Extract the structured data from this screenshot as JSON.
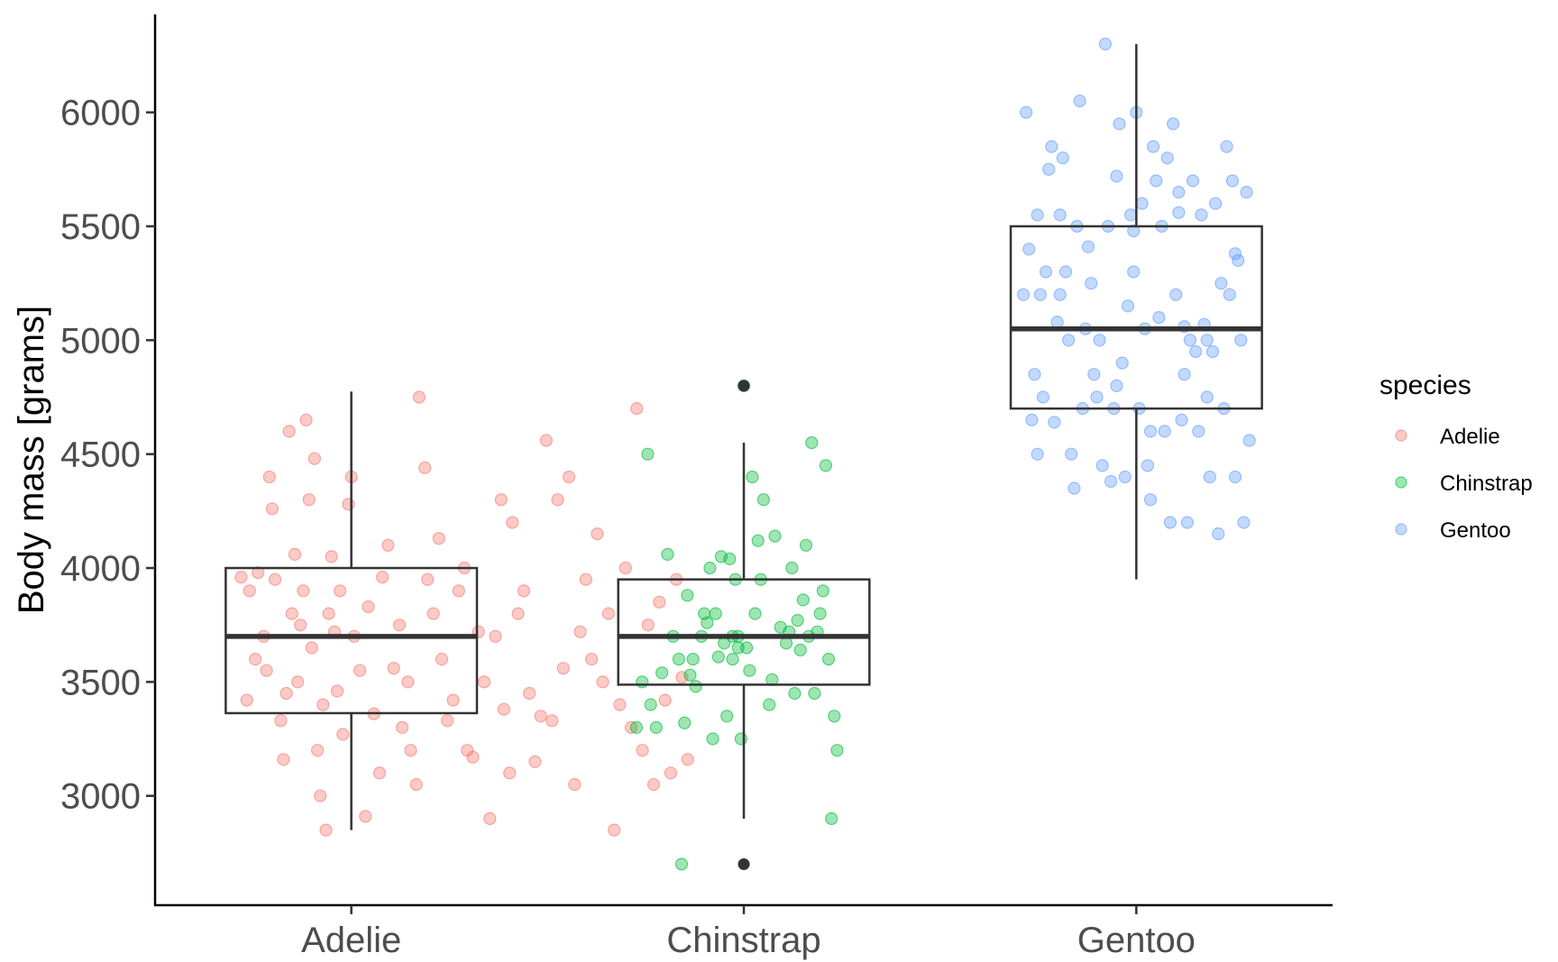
{
  "chart_data": {
    "type": "box",
    "ylabel": "Body mass [grams]",
    "xlabel": "",
    "categories": [
      "Adelie",
      "Chinstrap",
      "Gentoo"
    ],
    "yticks": [
      3000,
      3500,
      4000,
      4500,
      5000,
      5500,
      6000
    ],
    "ylim": [
      2520,
      6430
    ],
    "grid": false,
    "legend": {
      "title": "species",
      "position": "right",
      "entries": [
        {
          "name": "Adelie",
          "color": "#F8766D"
        },
        {
          "name": "Chinstrap",
          "color": "#00BA38"
        },
        {
          "name": "Gentoo",
          "color": "#619CFF"
        }
      ]
    },
    "boxes": [
      {
        "category": "Adelie",
        "whisker_low": 2850,
        "q1": 3363,
        "median": 3700,
        "q3": 4000,
        "whisker_high": 4775,
        "outliers": []
      },
      {
        "category": "Chinstrap",
        "whisker_low": 2900,
        "q1": 3488,
        "median": 3700,
        "q3": 3950,
        "whisker_high": 4550,
        "outliers": [
          2700,
          4800
        ]
      },
      {
        "category": "Gentoo",
        "whisker_low": 3950,
        "q1": 4700,
        "median": 5050,
        "q3": 5500,
        "whisker_high": 6300,
        "outliers": []
      }
    ],
    "series": [
      {
        "name": "Adelie",
        "color": "#F8766D",
        "points": [
          [
            -0.3,
            3960
          ],
          [
            -0.27,
            3900
          ],
          [
            -0.25,
            3600
          ],
          [
            -0.28,
            3420
          ],
          [
            -0.22,
            3700
          ],
          [
            -0.24,
            3980
          ],
          [
            -0.2,
            4400
          ],
          [
            -0.19,
            4260
          ],
          [
            -0.18,
            3950
          ],
          [
            -0.21,
            3550
          ],
          [
            -0.15,
            3160
          ],
          [
            -0.12,
            3800
          ],
          [
            -0.14,
            3450
          ],
          [
            -0.16,
            3330
          ],
          [
            -0.1,
            3500
          ],
          [
            -0.09,
            3750
          ],
          [
            -0.08,
            3900
          ],
          [
            -0.11,
            4060
          ],
          [
            -0.06,
            4300
          ],
          [
            -0.04,
            4480
          ],
          [
            -0.07,
            4650
          ],
          [
            -0.05,
            3650
          ],
          [
            -0.03,
            3200
          ],
          [
            -0.02,
            3000
          ],
          [
            0.0,
            2850
          ],
          [
            -0.13,
            4600
          ],
          [
            -0.01,
            3400
          ],
          [
            0.01,
            3800
          ],
          [
            0.02,
            4050
          ],
          [
            0.03,
            3720
          ],
          [
            0.04,
            3460
          ],
          [
            0.05,
            3900
          ],
          [
            0.06,
            3270
          ],
          [
            0.08,
            4280
          ],
          [
            0.09,
            4400
          ],
          [
            0.1,
            3700
          ],
          [
            0.12,
            3550
          ],
          [
            0.14,
            2910
          ],
          [
            0.15,
            3830
          ],
          [
            0.17,
            3360
          ],
          [
            0.19,
            3100
          ],
          [
            0.2,
            3960
          ],
          [
            0.22,
            4100
          ],
          [
            0.24,
            3560
          ],
          [
            0.26,
            3750
          ],
          [
            0.27,
            3300
          ],
          [
            0.29,
            3500
          ],
          [
            0.3,
            3200
          ],
          [
            0.32,
            3050
          ],
          [
            0.33,
            4750
          ],
          [
            0.35,
            4440
          ],
          [
            0.36,
            3950
          ],
          [
            0.38,
            3800
          ],
          [
            0.4,
            4130
          ],
          [
            0.41,
            3600
          ],
          [
            0.43,
            3330
          ],
          [
            0.45,
            3420
          ],
          [
            0.47,
            3900
          ],
          [
            0.49,
            4000
          ],
          [
            0.5,
            3200
          ],
          [
            0.52,
            3170
          ],
          [
            0.54,
            3720
          ],
          [
            0.56,
            3500
          ],
          [
            0.58,
            2900
          ],
          [
            0.6,
            3700
          ],
          [
            0.62,
            4300
          ],
          [
            0.63,
            3380
          ],
          [
            0.65,
            3100
          ],
          [
            0.66,
            4200
          ],
          [
            0.68,
            3800
          ],
          [
            0.7,
            3900
          ],
          [
            0.72,
            3450
          ],
          [
            0.74,
            3150
          ],
          [
            0.76,
            3350
          ],
          [
            0.78,
            4560
          ],
          [
            0.8,
            3330
          ],
          [
            0.82,
            4300
          ],
          [
            0.84,
            3560
          ],
          [
            0.86,
            4400
          ],
          [
            0.88,
            3050
          ],
          [
            0.9,
            3720
          ],
          [
            0.92,
            3950
          ],
          [
            0.94,
            3600
          ],
          [
            0.96,
            4150
          ],
          [
            0.98,
            3500
          ],
          [
            1.0,
            3800
          ],
          [
            1.02,
            2850
          ],
          [
            1.04,
            3400
          ],
          [
            1.06,
            4000
          ],
          [
            1.08,
            3300
          ],
          [
            1.1,
            4700
          ],
          [
            1.12,
            3200
          ],
          [
            1.14,
            3750
          ],
          [
            1.16,
            3050
          ],
          [
            1.18,
            3850
          ],
          [
            1.2,
            3420
          ],
          [
            1.22,
            3100
          ],
          [
            1.24,
            3950
          ],
          [
            1.26,
            3520
          ],
          [
            1.28,
            3160
          ]
        ]
      },
      {
        "name": "Chinstrap",
        "color": "#00BA38",
        "points": [
          [
            -0.29,
            3300
          ],
          [
            -0.27,
            3500
          ],
          [
            -0.25,
            4500
          ],
          [
            -0.24,
            3400
          ],
          [
            -0.22,
            3300
          ],
          [
            -0.2,
            3540
          ],
          [
            -0.18,
            4060
          ],
          [
            -0.16,
            3700
          ],
          [
            -0.14,
            3600
          ],
          [
            -0.12,
            3320
          ],
          [
            -0.13,
            2700
          ],
          [
            -0.1,
            3530
          ],
          [
            -0.08,
            3480
          ],
          [
            -0.06,
            3700
          ],
          [
            -0.04,
            3760
          ],
          [
            -0.03,
            4000
          ],
          [
            -0.02,
            3250
          ],
          [
            -0.01,
            3800
          ],
          [
            0.0,
            3610
          ],
          [
            0.01,
            4050
          ],
          [
            0.02,
            3670
          ],
          [
            0.03,
            3350
          ],
          [
            0.04,
            4040
          ],
          [
            0.05,
            3600
          ],
          [
            0.06,
            3950
          ],
          [
            0.07,
            3700
          ],
          [
            0.08,
            3250
          ],
          [
            0.09,
            4800
          ],
          [
            0.1,
            3650
          ],
          [
            0.11,
            3550
          ],
          [
            0.12,
            4400
          ],
          [
            0.13,
            3800
          ],
          [
            0.14,
            4120
          ],
          [
            0.16,
            4300
          ],
          [
            0.18,
            3400
          ],
          [
            0.2,
            4140
          ],
          [
            0.22,
            3740
          ],
          [
            0.24,
            3670
          ],
          [
            0.26,
            4000
          ],
          [
            0.27,
            3450
          ],
          [
            0.28,
            3770
          ],
          [
            0.29,
            3640
          ],
          [
            0.3,
            3860
          ],
          [
            0.31,
            4100
          ],
          [
            0.32,
            3700
          ],
          [
            0.33,
            4550
          ],
          [
            0.34,
            3450
          ],
          [
            0.35,
            3720
          ],
          [
            0.36,
            3800
          ],
          [
            0.37,
            3900
          ],
          [
            0.38,
            4450
          ],
          [
            0.39,
            3600
          ],
          [
            0.4,
            2900
          ],
          [
            0.41,
            3350
          ],
          [
            0.42,
            3200
          ],
          [
            0.07,
            3650
          ],
          [
            -0.05,
            3800
          ],
          [
            0.15,
            3950
          ],
          [
            0.25,
            3720
          ],
          [
            -0.09,
            3600
          ],
          [
            0.19,
            3510
          ],
          [
            0.05,
            3700
          ],
          [
            -0.11,
            3880
          ]
        ]
      },
      {
        "name": "Gentoo",
        "color": "#619CFF",
        "points": [
          [
            -0.31,
            5200
          ],
          [
            -0.3,
            6000
          ],
          [
            -0.29,
            5400
          ],
          [
            -0.28,
            4650
          ],
          [
            -0.27,
            4850
          ],
          [
            -0.26,
            5550
          ],
          [
            -0.25,
            5200
          ],
          [
            -0.24,
            4750
          ],
          [
            -0.23,
            5300
          ],
          [
            -0.22,
            5750
          ],
          [
            -0.21,
            5850
          ],
          [
            -0.2,
            4640
          ],
          [
            -0.19,
            5080
          ],
          [
            -0.18,
            5550
          ],
          [
            -0.17,
            5800
          ],
          [
            -0.16,
            5300
          ],
          [
            -0.15,
            5000
          ],
          [
            -0.14,
            4500
          ],
          [
            -0.13,
            4350
          ],
          [
            -0.12,
            5500
          ],
          [
            -0.11,
            6050
          ],
          [
            -0.1,
            4700
          ],
          [
            -0.09,
            5050
          ],
          [
            -0.08,
            5410
          ],
          [
            -0.07,
            5250
          ],
          [
            -0.06,
            4850
          ],
          [
            -0.05,
            4750
          ],
          [
            -0.04,
            5000
          ],
          [
            -0.03,
            4450
          ],
          [
            -0.02,
            6300
          ],
          [
            -0.01,
            5500
          ],
          [
            0.0,
            4380
          ],
          [
            0.01,
            4700
          ],
          [
            0.02,
            4800
          ],
          [
            0.03,
            5950
          ],
          [
            0.04,
            4900
          ],
          [
            0.05,
            4400
          ],
          [
            0.06,
            5150
          ],
          [
            0.07,
            5550
          ],
          [
            0.08,
            5480
          ],
          [
            0.09,
            6000
          ],
          [
            0.1,
            4700
          ],
          [
            0.11,
            5600
          ],
          [
            0.12,
            5050
          ],
          [
            0.13,
            4450
          ],
          [
            0.14,
            4300
          ],
          [
            0.15,
            5850
          ],
          [
            0.16,
            5700
          ],
          [
            0.17,
            5100
          ],
          [
            0.18,
            5500
          ],
          [
            0.19,
            4600
          ],
          [
            0.2,
            5800
          ],
          [
            0.21,
            4200
          ],
          [
            0.22,
            5950
          ],
          [
            0.23,
            5200
          ],
          [
            0.24,
            5650
          ],
          [
            0.25,
            4650
          ],
          [
            0.26,
            4850
          ],
          [
            0.27,
            4200
          ],
          [
            0.28,
            5000
          ],
          [
            0.29,
            5700
          ],
          [
            0.3,
            4950
          ],
          [
            0.31,
            4600
          ],
          [
            0.32,
            5550
          ],
          [
            0.33,
            5070
          ],
          [
            0.34,
            4750
          ],
          [
            0.35,
            4400
          ],
          [
            0.36,
            4950
          ],
          [
            0.37,
            5600
          ],
          [
            0.38,
            4150
          ],
          [
            0.39,
            5250
          ],
          [
            0.4,
            4700
          ],
          [
            0.41,
            5850
          ],
          [
            0.42,
            5200
          ],
          [
            0.43,
            5700
          ],
          [
            0.44,
            4400
          ],
          [
            0.45,
            5350
          ],
          [
            0.46,
            5000
          ],
          [
            0.47,
            4200
          ],
          [
            0.48,
            5650
          ],
          [
            0.49,
            4560
          ],
          [
            -0.18,
            5200
          ],
          [
            0.02,
            5720
          ],
          [
            0.26,
            5060
          ],
          [
            0.34,
            5000
          ],
          [
            0.14,
            4600
          ],
          [
            -0.26,
            4500
          ],
          [
            0.08,
            5300
          ],
          [
            0.24,
            5560
          ],
          [
            0.44,
            5380
          ]
        ]
      }
    ]
  }
}
